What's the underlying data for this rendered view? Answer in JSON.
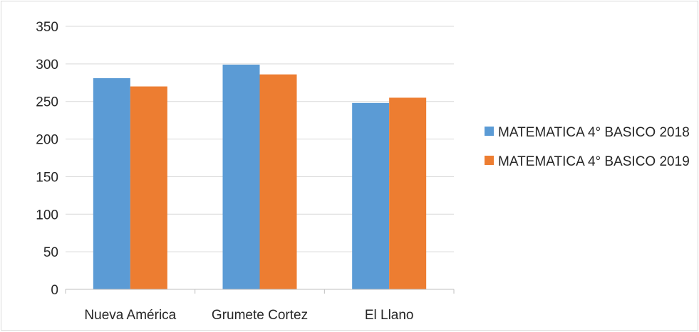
{
  "chart_data": {
    "type": "bar",
    "categories": [
      "Nueva América",
      "Grumete Cortez",
      "El Llano"
    ],
    "series": [
      {
        "name": "MATEMATICA 4° BASICO 2018",
        "values": [
          281,
          299,
          248
        ],
        "color": "#5b9bd5"
      },
      {
        "name": "MATEMATICA 4° BASICO 2019",
        "values": [
          270,
          286,
          255
        ],
        "color": "#ed7d31"
      }
    ],
    "ylim": [
      0,
      350
    ],
    "y_ticks": [
      0,
      50,
      100,
      150,
      200,
      250,
      300,
      350
    ],
    "grid": true,
    "legend_position": "right",
    "gridline_color": "#d9d9d9",
    "axis_color": "#bfbfbf"
  }
}
